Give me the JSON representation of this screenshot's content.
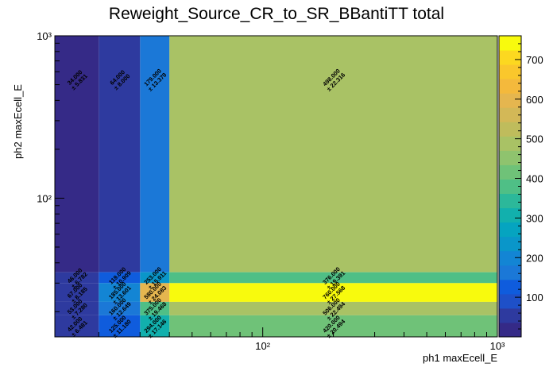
{
  "chart_data": {
    "type": "heatmap",
    "title": "Reweight_Source_CR_to_SR_BBantiTT total",
    "xlabel": "ph1 maxEcell_E",
    "ylabel": "ph2 maxEcell_E",
    "x_scale": "log",
    "y_scale": "log",
    "xlim": [
      13,
      1000
    ],
    "ylim": [
      14,
      1000
    ],
    "x_tick_labels": [
      {
        "value": 100,
        "label": "10²"
      },
      {
        "value": 1000,
        "label": "10³"
      }
    ],
    "y_tick_labels": [
      {
        "value": 100,
        "label": "10²"
      },
      {
        "value": 1000,
        "label": "10³"
      }
    ],
    "x_bin_edges": [
      13,
      20,
      30,
      40,
      1000
    ],
    "y_bin_edges": [
      14,
      19,
      23,
      30,
      35,
      1000
    ],
    "cells": [
      {
        "xi": 3,
        "yi": 4,
        "value": 498.0,
        "error": 22.316,
        "label": "498.000",
        "error_label": "± 22.316"
      },
      {
        "xi": 3,
        "yi": 3,
        "value": 376.0,
        "error": 19.391,
        "label": "376.000",
        "error_label": "± 19.391"
      },
      {
        "xi": 3,
        "yi": 2,
        "value": 760.0,
        "error": 27.568,
        "label": "760.000",
        "error_label": "± 27.568"
      },
      {
        "xi": 3,
        "yi": 1,
        "value": 506.0,
        "error": 22.494,
        "label": "506.000",
        "error_label": "± 22.494"
      },
      {
        "xi": 3,
        "yi": 0,
        "value": 420.0,
        "error": 20.494,
        "label": "420.000",
        "error_label": "± 20.494"
      },
      {
        "xi": 2,
        "yi": 4,
        "value": 179.0,
        "error": 13.379,
        "label": "179.000",
        "error_label": "± 13.379"
      },
      {
        "xi": 2,
        "yi": 3,
        "value": 253.0,
        "error": 15.911,
        "label": "253.000",
        "error_label": "± 15.911"
      },
      {
        "xi": 2,
        "yi": 2,
        "value": 580.0,
        "error": 24.083,
        "label": "580.000",
        "error_label": "± 24.083"
      },
      {
        "xi": 2,
        "yi": 1,
        "value": 375.0,
        "error": 19.468,
        "label": "375.000",
        "error_label": "± 19.468"
      },
      {
        "xi": 2,
        "yi": 0,
        "value": 294.0,
        "error": 17.146,
        "label": "294.000",
        "error_label": "± 17.146"
      },
      {
        "xi": 1,
        "yi": 4,
        "value": 64.0,
        "error": 8.0,
        "label": "64.000",
        "error_label": "± 8.000"
      },
      {
        "xi": 1,
        "yi": 3,
        "value": 119.0,
        "error": 10.909,
        "label": "119.000",
        "error_label": "± 10.909"
      },
      {
        "xi": 1,
        "yi": 2,
        "value": 185.0,
        "error": 13.601,
        "label": "185.000",
        "error_label": "± 13.601"
      },
      {
        "xi": 1,
        "yi": 1,
        "value": 160.0,
        "error": 12.649,
        "label": "160.000",
        "error_label": "± 12.649"
      },
      {
        "xi": 1,
        "yi": 0,
        "value": 125.0,
        "error": 11.18,
        "label": "125.000",
        "error_label": "± 11.180"
      },
      {
        "xi": 0,
        "yi": 4,
        "value": 34.0,
        "error": 5.831,
        "label": "34.000",
        "error_label": "± 5.831"
      },
      {
        "xi": 0,
        "yi": 3,
        "value": 46.0,
        "error": 6.782,
        "label": "46.000",
        "error_label": "± 6.782"
      },
      {
        "xi": 0,
        "yi": 2,
        "value": 67.0,
        "error": 8.185,
        "label": "67.000",
        "error_label": "± 8.185"
      },
      {
        "xi": 0,
        "yi": 1,
        "value": 53.0,
        "error": 7.28,
        "label": "53.000",
        "error_label": "± 7.280"
      },
      {
        "xi": 0,
        "yi": 0,
        "value": 42.0,
        "error": 6.481,
        "label": "42.000",
        "error_label": "± 6.481"
      }
    ],
    "colorbar": {
      "min": 0,
      "max": 760,
      "tick_values": [
        100,
        200,
        300,
        400,
        500,
        600,
        700
      ],
      "tick_labels": [
        "100",
        "200",
        "300",
        "400",
        "500",
        "600",
        "700"
      ],
      "palette": [
        "#352a87",
        "#2e3a9f",
        "#1e50c8",
        "#0f5cdd",
        "#1b78d7",
        "#1385d4",
        "#0a96c9",
        "#05a4c0",
        "#12b0ad",
        "#2cb89a",
        "#4fbf86",
        "#6fc278",
        "#8fc36e",
        "#a9c265",
        "#bfbc5c",
        "#d3b857",
        "#e5b64f",
        "#f4b93c",
        "#fac72c",
        "#fcd820",
        "#f8fa0d"
      ]
    }
  }
}
